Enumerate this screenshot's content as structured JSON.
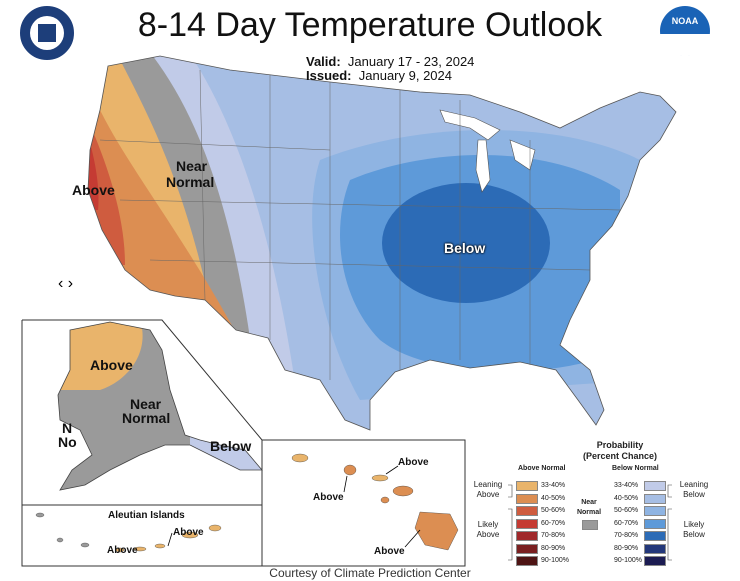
{
  "title": "8-14 Day Temperature Outlook",
  "valid_label": "Valid:",
  "valid_dates": "January 17 - 23, 2024",
  "issued_label": "Issued:",
  "issued_date": "January 9, 2024",
  "logos": {
    "left": "Department of Commerce seal",
    "right": "NOAA"
  },
  "noaa_text": "NOAA",
  "map_labels": {
    "above_west": "Above",
    "near_normal_line1": "Near",
    "near_normal_line2": "Normal",
    "below_center": "Below",
    "ak_above": "Above",
    "ak_near1": "Near",
    "ak_near2": "Normal",
    "ak_below": "Below",
    "ak_n1": "N",
    "ak_n2": "No",
    "aleutian_title": "Aleutian Islands",
    "aleutian_above1": "Above",
    "aleutian_above2": "Above",
    "hi_above1": "Above",
    "hi_above2": "Above",
    "hi_above3": "Above"
  },
  "nav_arrows": "‹ ›",
  "legend": {
    "title_line1": "Probability",
    "title_line2": "(Percent Chance)",
    "above_head": "Above Normal",
    "below_head": "Below Normal",
    "near_label1": "Near",
    "near_label2": "Normal",
    "above_rows": [
      "33-40%",
      "40-50%",
      "50-60%",
      "60-70%",
      "70-80%",
      "80-90%",
      "90-100%"
    ],
    "below_rows": [
      "33-40%",
      "40-50%",
      "50-60%",
      "60-70%",
      "70-80%",
      "80-90%",
      "90-100%"
    ],
    "above_colors": [
      "#e9b46b",
      "#dc8e52",
      "#cf5c3f",
      "#c53b33",
      "#a0282a",
      "#7a1f20",
      "#4e1414"
    ],
    "below_colors": [
      "#c1cbe8",
      "#a6bee4",
      "#8fb4e2",
      "#5e9ad9",
      "#2c6bb6",
      "#23377a",
      "#1c1c52"
    ],
    "near_color": "#9a9a9a",
    "leaning_above1": "Leaning",
    "leaning_above2": "Above",
    "likely_above1": "Likely",
    "likely_above2": "Above",
    "leaning_below1": "Leaning",
    "leaning_below2": "Below",
    "likely_below1": "Likely",
    "likely_below2": "Below"
  },
  "credit": "Courtesy of Climate Prediction Center"
}
